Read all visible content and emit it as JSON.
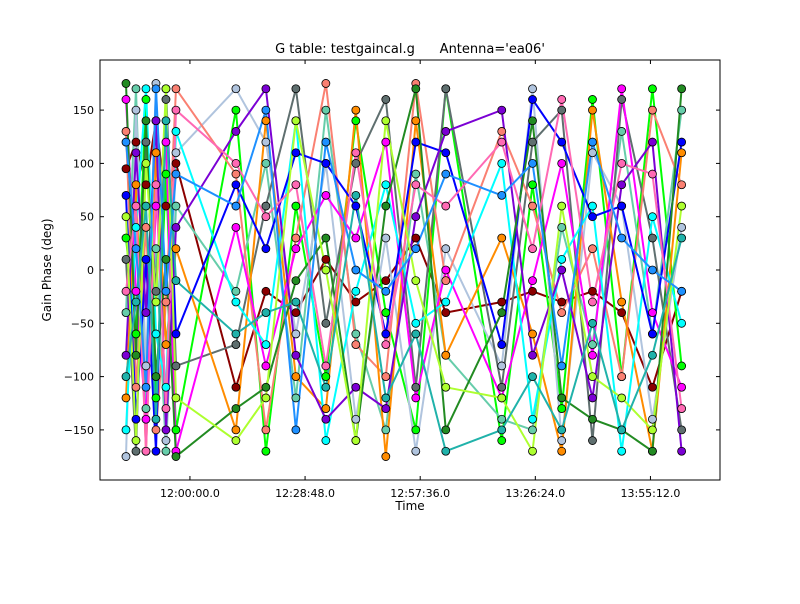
{
  "chart_data": {
    "type": "line",
    "title": "G table: testgaincal.g      Antenna='ea06'",
    "xlabel": "Time",
    "ylabel": "Gain Phase (deg)",
    "x_units": "minutes after 12:00:00",
    "xlim": [
      -22.5,
      132.6
    ],
    "ylim": [
      -197,
      197
    ],
    "xticks": [
      {
        "value": 0,
        "label": "12:00:00.0"
      },
      {
        "value": 28.8,
        "label": "12:28:48.0"
      },
      {
        "value": 57.6,
        "label": "12:57:36.0"
      },
      {
        "value": 86.4,
        "label": "13:26:24.0"
      },
      {
        "value": 115.2,
        "label": "13:55:12.0"
      }
    ],
    "yticks": [
      {
        "value": 150,
        "label": "150"
      },
      {
        "value": 100,
        "label": "100"
      },
      {
        "value": 50,
        "label": "50"
      },
      {
        "value": 0,
        "label": "0"
      },
      {
        "value": -50,
        "label": "−50"
      },
      {
        "value": -100,
        "label": "−100"
      },
      {
        "value": -150,
        "label": "−150"
      }
    ],
    "grid": false,
    "legend": "none",
    "marker": "circle",
    "x": [
      -16,
      -13.5,
      -11,
      -8.5,
      -6,
      -3.5,
      11.5,
      19,
      26.5,
      34,
      41.5,
      49,
      56.5,
      64,
      78,
      85.7,
      93,
      100.7,
      108,
      115.7,
      123
    ],
    "series": [
      {
        "color": "#8b0000",
        "values": [
          95,
          120,
          80,
          140,
          60,
          100,
          -110,
          -20,
          -40,
          10,
          -30,
          -10,
          30,
          -40,
          -30,
          -20,
          -30,
          -20,
          -40,
          -110,
          -20
        ]
      },
      {
        "color": "#00ff00",
        "values": [
          30,
          -60,
          160,
          -120,
          90,
          -150,
          150,
          -170,
          60,
          -100,
          140,
          -40,
          -150,
          170,
          -160,
          80,
          -130,
          160,
          -100,
          170,
          -90
        ]
      },
      {
        "color": "#66cdaa",
        "values": [
          -40,
          170,
          -130,
          20,
          -170,
          60,
          -20,
          100,
          -120,
          150,
          -60,
          -150,
          90,
          -80,
          -140,
          -150,
          40,
          -70,
          130,
          -60,
          150
        ]
      },
      {
        "color": "#b0c4de",
        "values": [
          -175,
          150,
          -90,
          175,
          -160,
          110,
          170,
          120,
          -60,
          100,
          -140,
          30,
          -170,
          20,
          -90,
          170,
          -160,
          110,
          60,
          -140,
          40
        ]
      },
      {
        "color": "#5f6f6f",
        "values": [
          10,
          -170,
          120,
          -20,
          160,
          -90,
          -70,
          60,
          170,
          -50,
          100,
          160,
          -110,
          170,
          -110,
          120,
          150,
          -160,
          160,
          30,
          -150
        ]
      },
      {
        "color": "#fa8072",
        "values": [
          130,
          -110,
          40,
          -150,
          -30,
          170,
          90,
          -150,
          30,
          175,
          -70,
          -100,
          175,
          -10,
          130,
          60,
          -40,
          20,
          -100,
          150,
          80
        ]
      },
      {
        "color": "#ff8c00",
        "values": [
          -120,
          80,
          -170,
          110,
          -70,
          20,
          -150,
          140,
          -100,
          -130,
          150,
          -175,
          140,
          -80,
          30,
          -60,
          -170,
          150,
          -30,
          -170,
          110
        ]
      },
      {
        "color": "#ff00ff",
        "values": [
          160,
          -20,
          -140,
          60,
          120,
          -170,
          40,
          -90,
          20,
          70,
          30,
          120,
          -120,
          0,
          -120,
          -10,
          100,
          -80,
          170,
          -40,
          -110
        ]
      },
      {
        "color": "#00ffff",
        "values": [
          -150,
          40,
          170,
          -60,
          -110,
          130,
          -30,
          -70,
          140,
          -160,
          -20,
          80,
          -50,
          -30,
          100,
          -140,
          10,
          60,
          -170,
          50,
          -50
        ]
      },
      {
        "color": "#0000ff",
        "values": [
          70,
          -140,
          10,
          -170,
          170,
          -60,
          80,
          20,
          110,
          100,
          60,
          -60,
          120,
          110,
          -70,
          160,
          120,
          50,
          60,
          -60,
          120
        ]
      },
      {
        "color": "#7b00d4",
        "values": [
          -80,
          110,
          -40,
          140,
          -150,
          40,
          130,
          170,
          -80,
          -140,
          -110,
          -130,
          50,
          130,
          150,
          -80,
          0,
          -120,
          80,
          120,
          -170
        ]
      },
      {
        "color": "#228b22",
        "values": [
          175,
          -80,
          140,
          -100,
          10,
          -175,
          -130,
          -110,
          -10,
          30,
          -160,
          60,
          170,
          -150,
          -40,
          140,
          -120,
          -140,
          -150,
          -170,
          170
        ]
      },
      {
        "color": "#ff69b4",
        "values": [
          -20,
          60,
          -170,
          80,
          -130,
          150,
          100,
          50,
          80,
          -90,
          110,
          -70,
          80,
          60,
          120,
          20,
          160,
          -30,
          100,
          90,
          -130
        ]
      },
      {
        "color": "#adff2f",
        "values": [
          50,
          -160,
          100,
          -30,
          170,
          -120,
          -160,
          -120,
          140,
          0,
          -160,
          140,
          -10,
          -110,
          -120,
          -170,
          60,
          -100,
          -120,
          -150,
          60
        ]
      },
      {
        "color": "#1e90ff",
        "values": [
          120,
          20,
          -110,
          170,
          -20,
          90,
          60,
          150,
          -150,
          120,
          0,
          -20,
          20,
          90,
          70,
          100,
          -90,
          120,
          30,
          0,
          -20
        ]
      },
      {
        "color": "#20b2aa",
        "values": [
          -100,
          -30,
          60,
          -140,
          140,
          -10,
          -60,
          -40,
          -30,
          -110,
          70,
          -120,
          -60,
          -170,
          -150,
          -100,
          -150,
          -50,
          -150,
          -80,
          30
        ]
      }
    ]
  }
}
